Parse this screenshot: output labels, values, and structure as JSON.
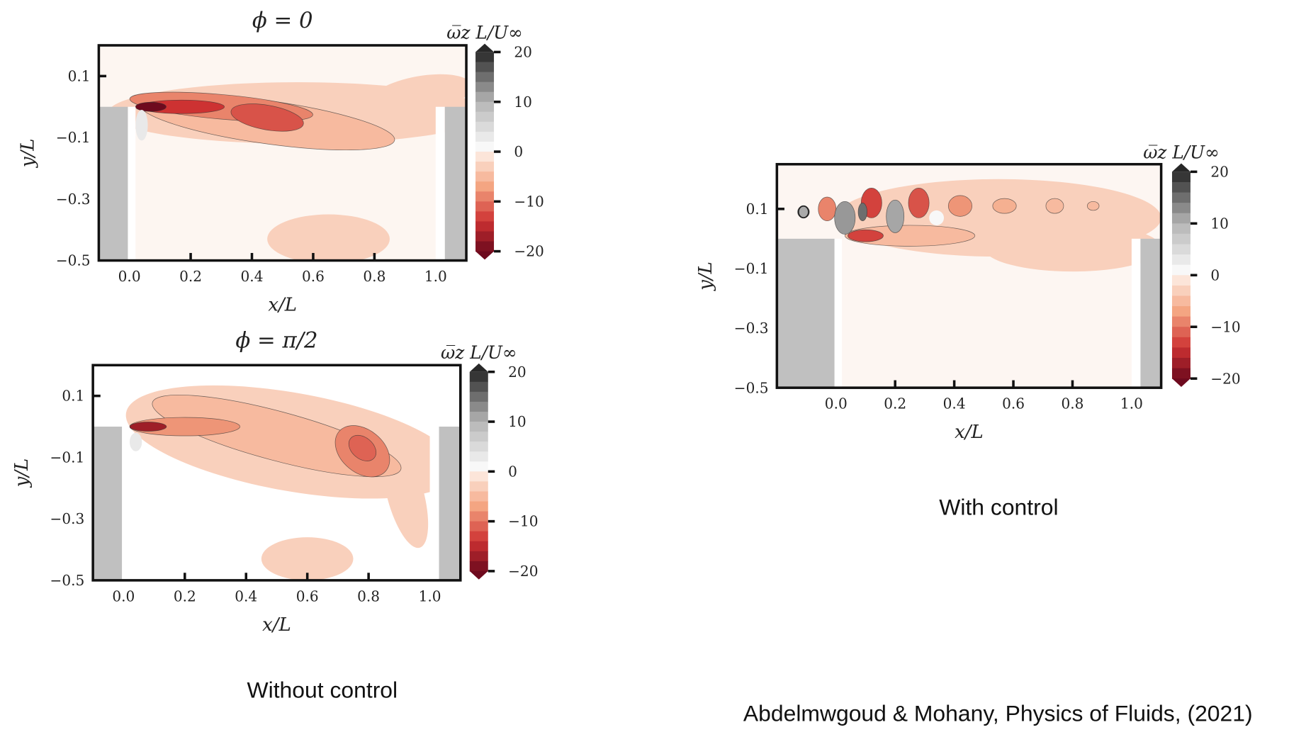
{
  "captions": {
    "left": "Without control",
    "right": "With control",
    "citation": "Abdelmwgoud & Mohany, Physics of Fluids, (2021)"
  },
  "chart_data": [
    {
      "type": "heatmap",
      "title": "ϕ = 0",
      "xlabel": "x/L",
      "ylabel": "y/L",
      "xticks": [
        "0.0",
        "0.2",
        "0.4",
        "0.6",
        "0.8",
        "1.0"
      ],
      "yticks": [
        "0.1",
        "−0.1",
        "−0.3",
        "−0.5"
      ],
      "xlim": [
        -0.1,
        1.1
      ],
      "ylim": [
        -0.5,
        0.2
      ],
      "colorbar": {
        "label": "ω̅z L/U∞",
        "ticks": [
          "20",
          "10",
          "0",
          "−10",
          "−20"
        ],
        "range": [
          -20,
          20
        ]
      },
      "background": "#fdf6f1"
    },
    {
      "type": "heatmap",
      "title": "ϕ = π/2",
      "xlabel": "x/L",
      "ylabel": "y/L",
      "xticks": [
        "0.0",
        "0.2",
        "0.4",
        "0.6",
        "0.8",
        "1.0"
      ],
      "yticks": [
        "0.1",
        "−0.1",
        "−0.3",
        "−0.5"
      ],
      "xlim": [
        -0.1,
        1.1
      ],
      "ylim": [
        -0.5,
        0.2
      ],
      "colorbar": {
        "label": "ω̅z L/U∞",
        "ticks": [
          "20",
          "10",
          "0",
          "−10",
          "−20"
        ],
        "range": [
          -20,
          20
        ]
      },
      "background": "#ffffff"
    },
    {
      "type": "heatmap",
      "title": "",
      "xlabel": "x/L",
      "ylabel": "y/L",
      "xticks": [
        "0.0",
        "0.2",
        "0.4",
        "0.6",
        "0.8",
        "1.0"
      ],
      "yticks": [
        "0.1",
        "−0.1",
        "−0.3",
        "−0.5"
      ],
      "xlim": [
        -0.2,
        1.1
      ],
      "ylim": [
        -0.5,
        0.25
      ],
      "colorbar": {
        "label": "ω̅z L/U∞",
        "ticks": [
          "20",
          "10",
          "0",
          "−10",
          "−20"
        ],
        "range": [
          -20,
          20
        ]
      },
      "background": "#fdf6f2"
    }
  ]
}
